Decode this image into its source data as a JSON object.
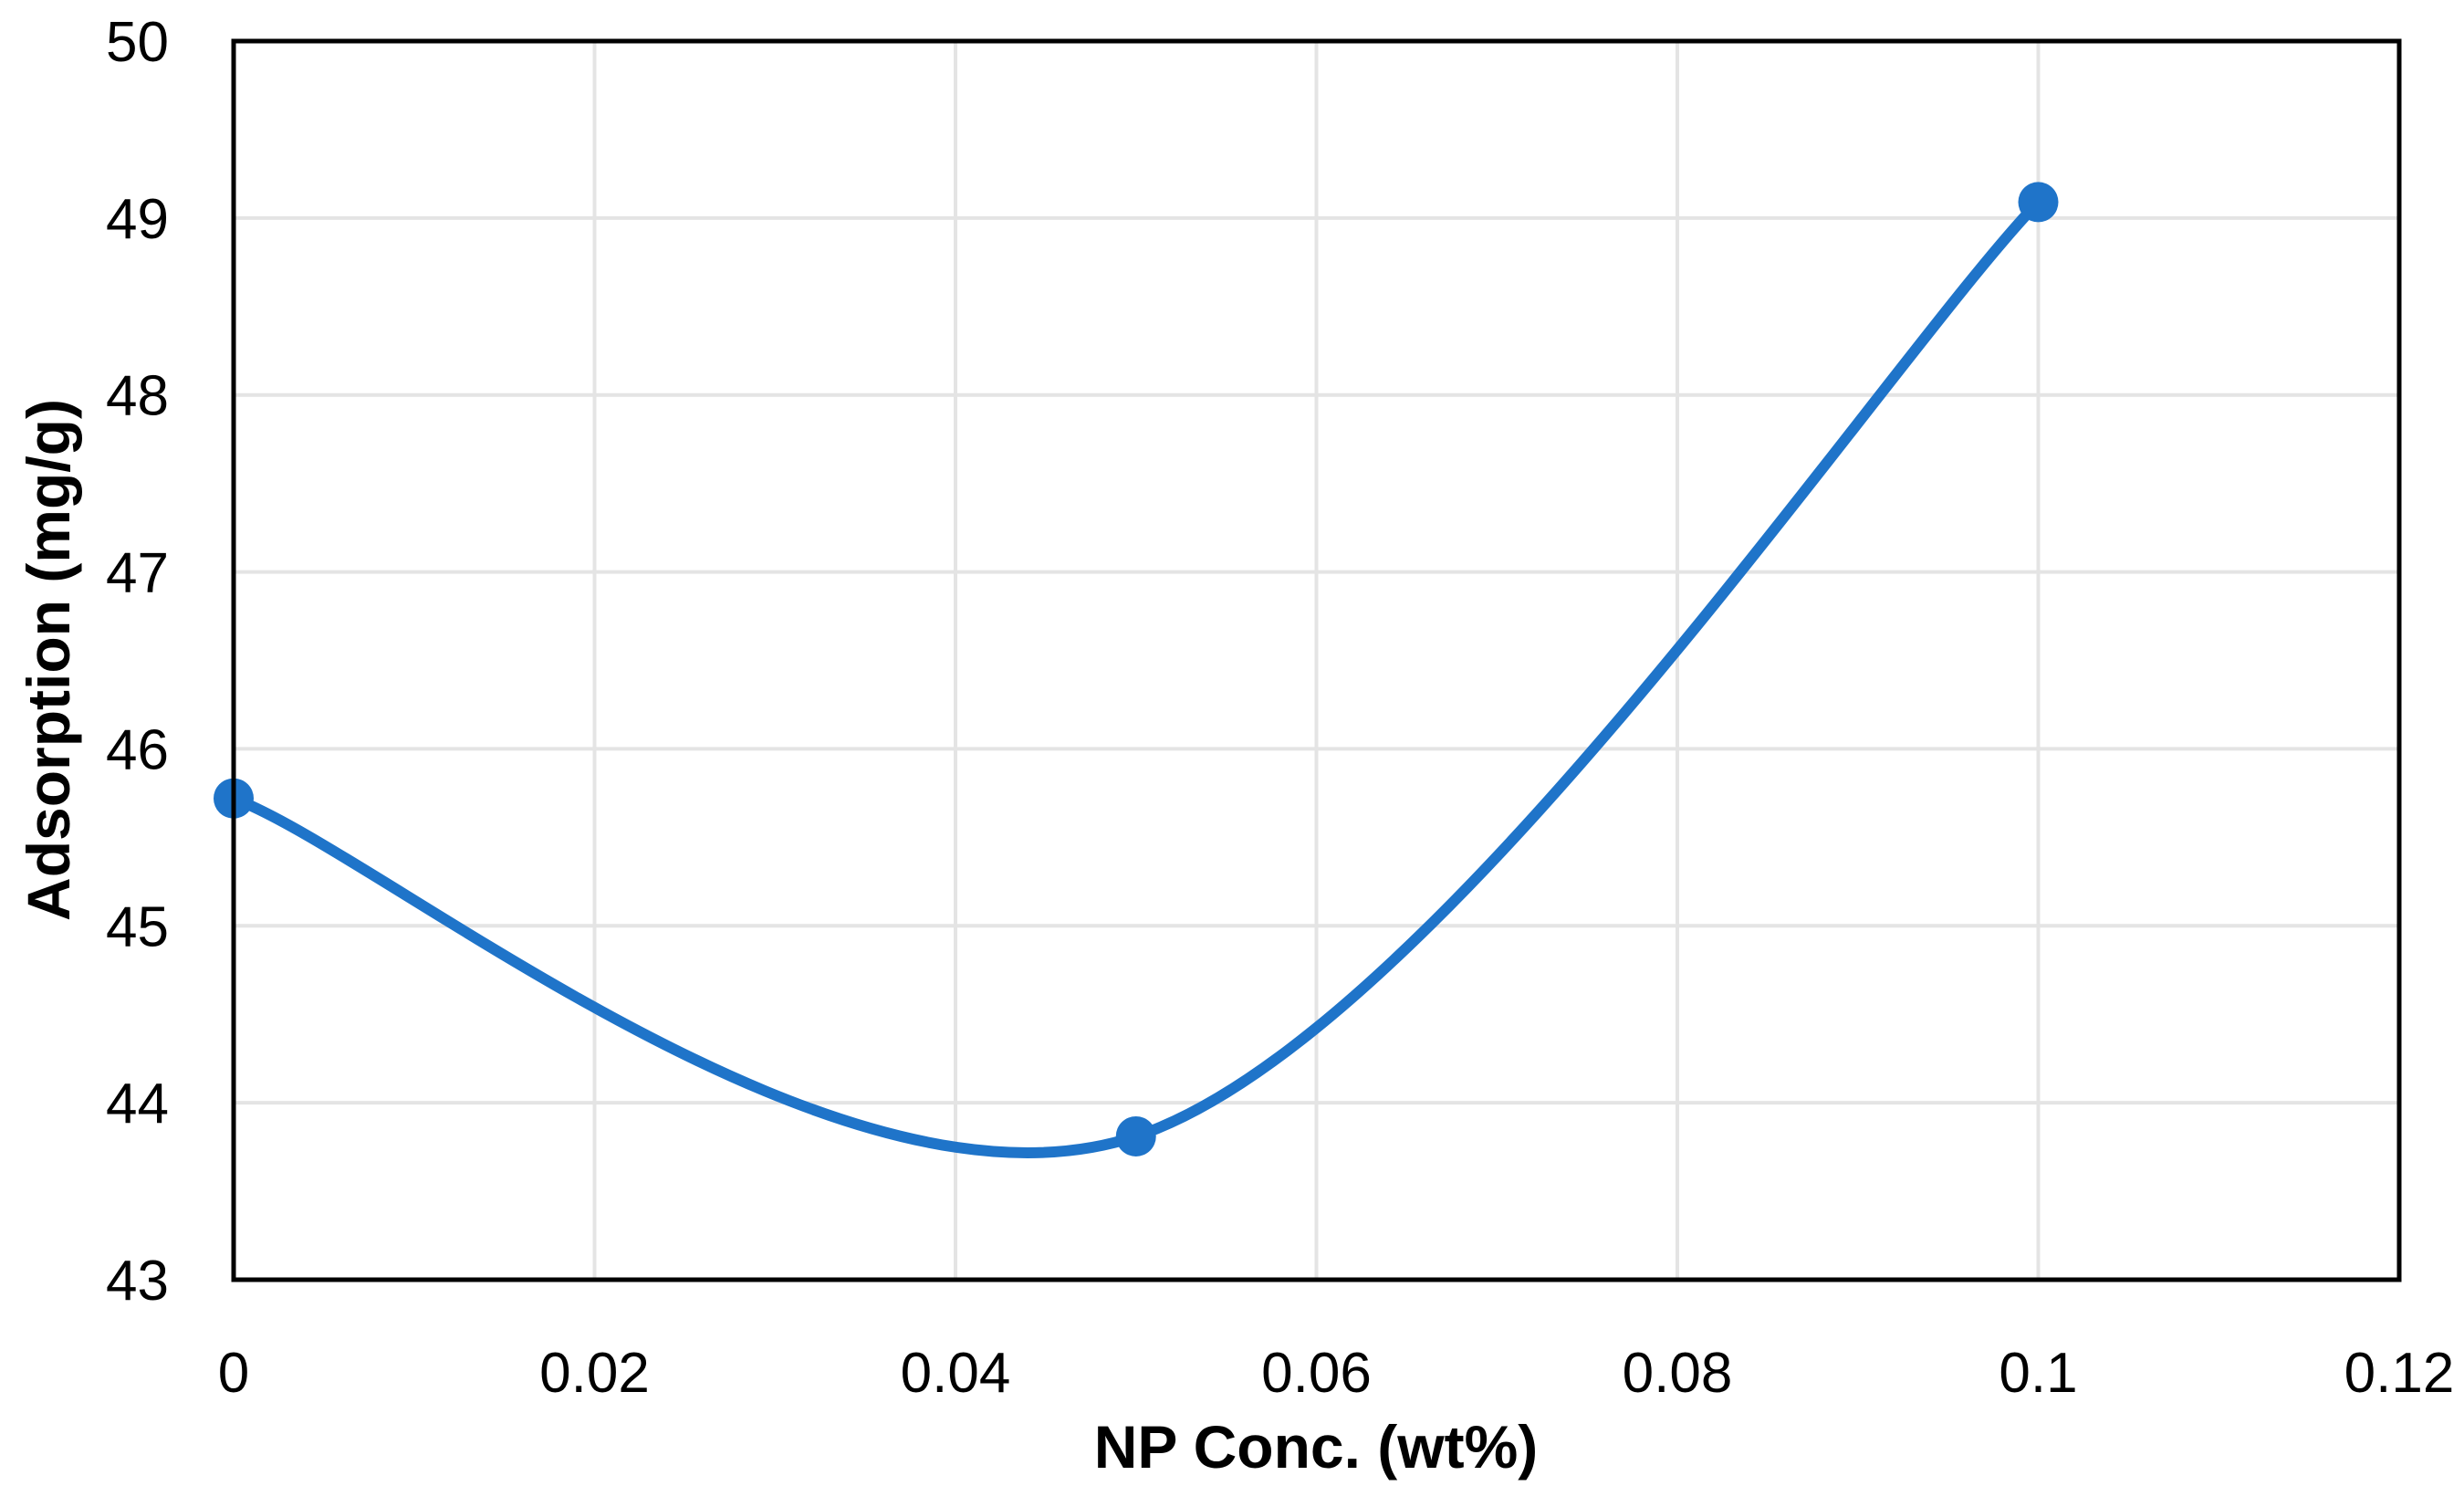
{
  "chart_data": {
    "type": "line",
    "title": "",
    "xlabel": "NP Conc. (wt%)",
    "ylabel": "Adsorption (mg/g)",
    "xlim": [
      0,
      0.12
    ],
    "ylim": [
      43,
      50
    ],
    "x_ticks": [
      0,
      0.02,
      0.04,
      0.06,
      0.08,
      0.1,
      0.12
    ],
    "x_tick_labels": [
      "0",
      "0.02",
      "0.04",
      "0.06",
      "0.08",
      "0.1",
      "0.12"
    ],
    "y_ticks": [
      43,
      44,
      45,
      46,
      47,
      48,
      49,
      50
    ],
    "y_tick_labels": [
      "43",
      "44",
      "45",
      "46",
      "47",
      "48",
      "49",
      "50"
    ],
    "grid": true,
    "smooth": true,
    "series": [
      {
        "name": "Adsorption",
        "color": "#1F74C9",
        "x": [
          0,
          0.05,
          0.1
        ],
        "values": [
          45.72,
          43.81,
          49.09
        ]
      }
    ]
  }
}
